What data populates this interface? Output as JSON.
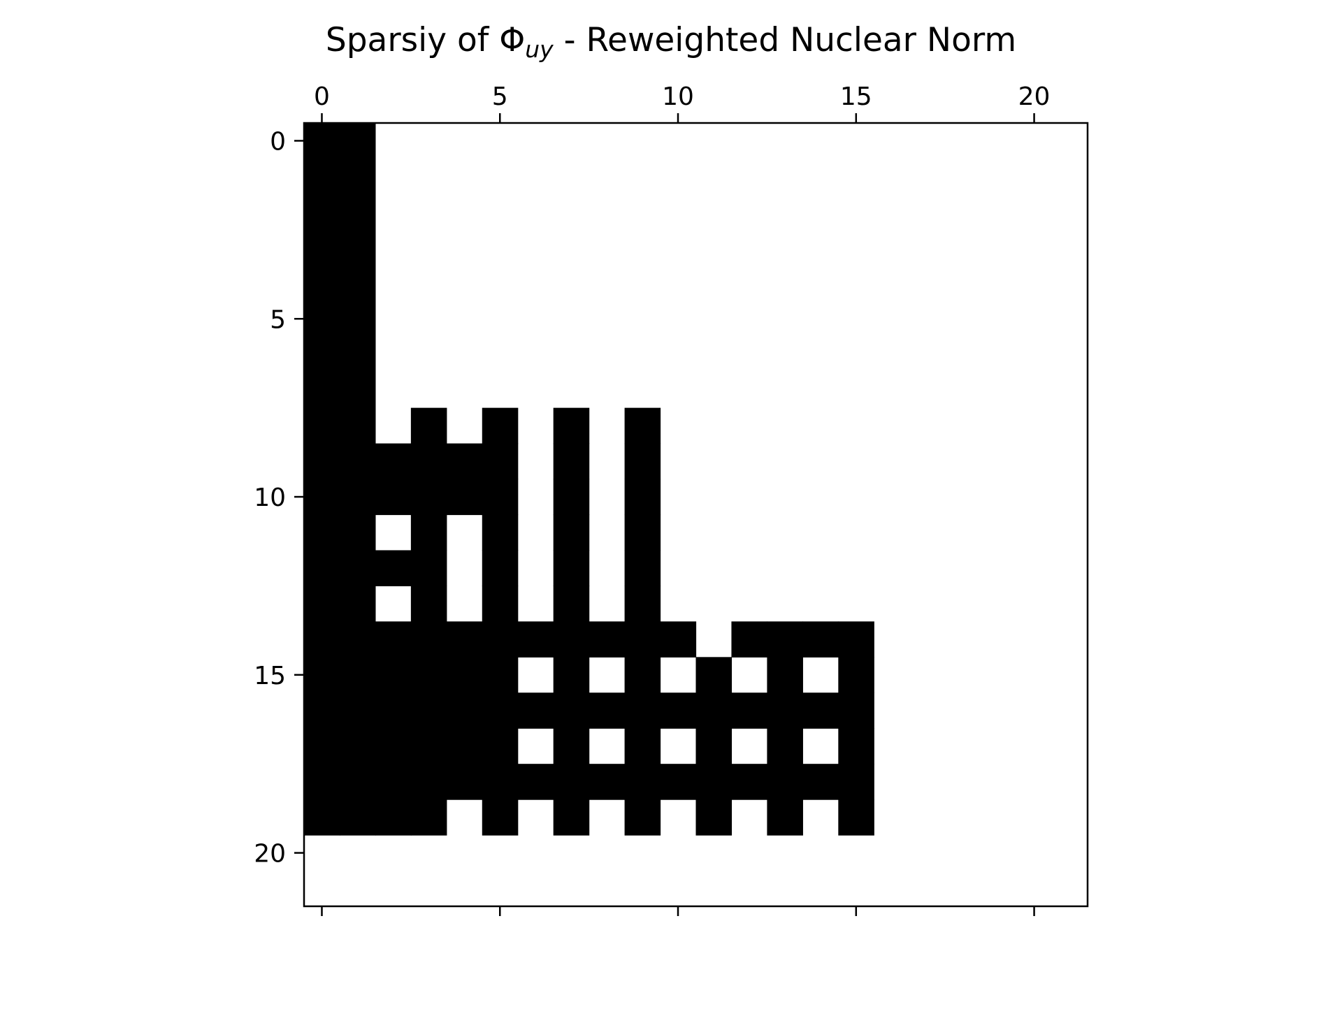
{
  "chart_data": {
    "type": "heatmap",
    "title": {
      "prefix": "Sparsiy of Φ",
      "subscript": "uy",
      "suffix": " - Reweighted Nuclear Norm"
    },
    "xlabel": "",
    "ylabel": "",
    "n_rows": 22,
    "n_cols": 22,
    "xlim": [
      -0.5,
      21.5
    ],
    "ylim": [
      21.5,
      -0.5
    ],
    "x_ticks": [
      0,
      5,
      10,
      15,
      20
    ],
    "y_ticks": [
      0,
      5,
      10,
      15,
      20
    ],
    "x_axis_position": "top",
    "y_axis_position": "left",
    "grid": false,
    "colors": {
      "nonzero": "#000000",
      "zero": "#ffffff",
      "axis": "#000000"
    },
    "nonzero_rows": [
      [
        0,
        1
      ],
      [
        0,
        1
      ],
      [
        0,
        1
      ],
      [
        0,
        1
      ],
      [
        0,
        1
      ],
      [
        0,
        1
      ],
      [
        0,
        1
      ],
      [
        0,
        1
      ],
      [
        0,
        1,
        3,
        5,
        7,
        9
      ],
      [
        0,
        1,
        2,
        3,
        4,
        5,
        7,
        9
      ],
      [
        0,
        1,
        2,
        3,
        4,
        5,
        7,
        9
      ],
      [
        0,
        1,
        3,
        5,
        7,
        9
      ],
      [
        0,
        1,
        2,
        3,
        5,
        7,
        9
      ],
      [
        0,
        1,
        3,
        5,
        7,
        9
      ],
      [
        0,
        1,
        2,
        3,
        4,
        5,
        6,
        7,
        8,
        9,
        10,
        12,
        13,
        14,
        15
      ],
      [
        0,
        1,
        2,
        3,
        4,
        5,
        7,
        9,
        11,
        13,
        15
      ],
      [
        0,
        1,
        2,
        3,
        4,
        5,
        6,
        7,
        8,
        9,
        10,
        11,
        12,
        13,
        14,
        15
      ],
      [
        0,
        1,
        2,
        3,
        4,
        5,
        7,
        9,
        11,
        13,
        15
      ],
      [
        0,
        1,
        2,
        3,
        4,
        5,
        6,
        7,
        8,
        9,
        10,
        11,
        12,
        13,
        14,
        15
      ],
      [
        0,
        1,
        2,
        3,
        5,
        7,
        9,
        11,
        13,
        15
      ],
      [],
      []
    ]
  }
}
